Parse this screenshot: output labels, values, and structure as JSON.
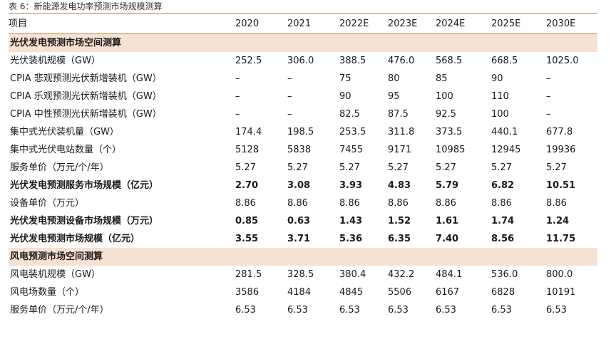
{
  "caption": "表 6：新能源发电功率预测市场规模测算",
  "header": [
    "项目",
    "2020",
    "2021",
    "2022E",
    "2023E",
    "2024E",
    "2025E",
    "2030E"
  ],
  "rows": [
    {
      "type": "section",
      "label": "光伏发电预测市场空间测算"
    },
    {
      "type": "normal",
      "label": "光伏装机规模（GW）",
      "values": [
        "252.5",
        "306.0",
        "388.5",
        "476.0",
        "568.5",
        "668.5",
        "1025.0"
      ]
    },
    {
      "type": "normal",
      "label": "CPIA 悲观预测光伏新增装机（GW）",
      "values": [
        "–",
        "–",
        "75",
        "80",
        "85",
        "90",
        "–"
      ]
    },
    {
      "type": "normal",
      "label": "CPIA 乐观预测光伏新增装机（GW）",
      "values": [
        "–",
        "–",
        "90",
        "95",
        "100",
        "110",
        "–"
      ]
    },
    {
      "type": "normal",
      "label": "CPIA 中性预测光伏新增装机（GW）",
      "values": [
        "–",
        "–",
        "82.5",
        "87.5",
        "92.5",
        "100",
        "–"
      ]
    },
    {
      "type": "normal",
      "label": "集中式光伏装机量（GW）",
      "values": [
        "174.4",
        "198.5",
        "253.5",
        "311.8",
        "373.5",
        "440.1",
        "677.8"
      ]
    },
    {
      "type": "normal",
      "label": "集中式光伏电站数量（个）",
      "values": [
        "5128",
        "5838",
        "7455",
        "9171",
        "10985",
        "12945",
        "19936"
      ]
    },
    {
      "type": "normal",
      "label": "服务单价（万元/个/年）",
      "values": [
        "5.27",
        "5.27",
        "5.27",
        "5.27",
        "5.27",
        "5.27",
        "5.27"
      ]
    },
    {
      "type": "bold",
      "label": "光伏发电预测服务市场规模（亿元）",
      "values": [
        "2.70",
        "3.08",
        "3.93",
        "4.83",
        "5.79",
        "6.82",
        "10.51"
      ]
    },
    {
      "type": "normal",
      "label": "设备单价（万元）",
      "values": [
        "8.86",
        "8.86",
        "8.86",
        "8.86",
        "8.86",
        "8.86",
        "8.86"
      ]
    },
    {
      "type": "bold",
      "label": "光伏发电预测设备市场规模（万元）",
      "values": [
        "0.85",
        "0.63",
        "1.43",
        "1.52",
        "1.61",
        "1.74",
        "1.24"
      ]
    },
    {
      "type": "bold",
      "label": "光伏发电预测市场规模（亿元）",
      "values": [
        "3.55",
        "3.71",
        "5.36",
        "6.35",
        "7.40",
        "8.56",
        "11.75"
      ]
    },
    {
      "type": "section",
      "label": "风电预测市场空间测算"
    },
    {
      "type": "normal",
      "label": "风电装机规模（GW）",
      "values": [
        "281.5",
        "328.5",
        "380.4",
        "432.2",
        "484.1",
        "536.0",
        "800.0"
      ]
    },
    {
      "type": "normal",
      "label": "风电场数量（个）",
      "values": [
        "3586",
        "4184",
        "4845",
        "5506",
        "6167",
        "6828",
        "10191"
      ]
    },
    {
      "type": "normal",
      "label": "服务单价（万元/个/年）",
      "values": [
        "6.53",
        "6.53",
        "6.53",
        "6.53",
        "6.53",
        "6.53",
        "6.53"
      ]
    }
  ]
}
